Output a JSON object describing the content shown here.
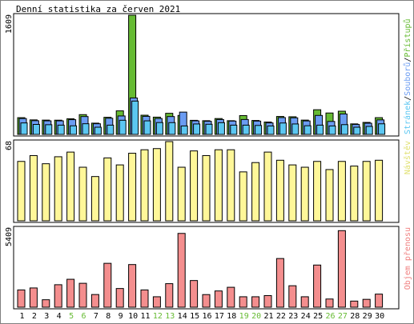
{
  "title": "Denní statistika za červen 2021",
  "colors": {
    "pristupu": "#66bb33",
    "souboru": "#6b9cf2",
    "stranek": "#5cc7f2",
    "navstev": "#fff799",
    "navstev_label": "#e0e070",
    "objem": "#f48e8e",
    "objem_label": "#f07f7f",
    "weekend": "#66bb33",
    "text": "#000000",
    "border": "#000000"
  },
  "chart_data": [
    {
      "type": "bar",
      "panel": "hits",
      "categories": [
        "1",
        "2",
        "3",
        "4",
        "5",
        "6",
        "7",
        "8",
        "9",
        "10",
        "11",
        "12",
        "13",
        "14",
        "15",
        "16",
        "17",
        "18",
        "19",
        "20",
        "21",
        "22",
        "23",
        "24",
        "25",
        "26",
        "27",
        "28",
        "29",
        "30"
      ],
      "weekend_days": [
        "5",
        "6",
        "12",
        "13",
        "19",
        "20",
        "26",
        "27"
      ],
      "ylabel_max": "1609",
      "ylim": [
        0,
        1609
      ],
      "legend_parts": [
        "Stránek",
        "/",
        "Souborů",
        "/",
        "Přístupů"
      ],
      "series": [
        {
          "name": "Přístupů",
          "color": "#66bb33",
          "values": [
            226,
            196,
            193,
            192,
            211,
            267,
            152,
            231,
            318,
            1609,
            259,
            233,
            285,
            256,
            190,
            185,
            214,
            185,
            254,
            188,
            167,
            242,
            238,
            193,
            333,
            289,
            313,
            142,
            162,
            226
          ]
        },
        {
          "name": "Souborů",
          "color": "#6b9cf2",
          "values": [
            214,
            185,
            183,
            183,
            199,
            241,
            144,
            218,
            249,
            492,
            244,
            215,
            241,
            301,
            183,
            177,
            201,
            180,
            201,
            180,
            155,
            227,
            224,
            182,
            256,
            175,
            276,
            134,
            151,
            196
          ]
        },
        {
          "name": "Stránek",
          "color": "#5cc7f2",
          "values": [
            155,
            135,
            131,
            125,
            116,
            144,
            97,
            125,
            191,
            450,
            183,
            160,
            159,
            114,
            141,
            137,
            158,
            125,
            125,
            121,
            114,
            154,
            141,
            117,
            125,
            114,
            132,
            97,
            108,
            143
          ]
        }
      ]
    },
    {
      "type": "bar",
      "panel": "visits",
      "categories": [
        "1",
        "2",
        "3",
        "4",
        "5",
        "6",
        "7",
        "8",
        "9",
        "10",
        "11",
        "12",
        "13",
        "14",
        "15",
        "16",
        "17",
        "18",
        "19",
        "20",
        "21",
        "22",
        "23",
        "24",
        "25",
        "26",
        "27",
        "28",
        "29",
        "30"
      ],
      "ylabel_max": "68",
      "ylim": [
        0,
        68
      ],
      "series_label": "Návštěv",
      "series": [
        {
          "name": "Návštěv",
          "color": "#fff799",
          "values": [
            51,
            56,
            49,
            55,
            59,
            46,
            38,
            54,
            48,
            58,
            61,
            62,
            68,
            46,
            60,
            56,
            61,
            61,
            42,
            50,
            59,
            52,
            48,
            46,
            51,
            44,
            51,
            47,
            51,
            52
          ]
        }
      ]
    },
    {
      "type": "bar",
      "panel": "traffic",
      "categories": [
        "1",
        "2",
        "3",
        "4",
        "5",
        "6",
        "7",
        "8",
        "9",
        "10",
        "11",
        "12",
        "13",
        "14",
        "15",
        "16",
        "17",
        "18",
        "19",
        "20",
        "21",
        "22",
        "23",
        "24",
        "25",
        "26",
        "27",
        "28",
        "29",
        "30"
      ],
      "ylabel_max": "5409",
      "ylim": [
        0,
        5409
      ],
      "series_label": "Objem přenosu",
      "series": [
        {
          "name": "Objem přenosu",
          "color": "#f48e8e",
          "values": [
            1180,
            1315,
            510,
            1536,
            1908,
            1633,
            866,
            2997,
            1277,
            2913,
            1180,
            714,
            1608,
            5040,
            1822,
            862,
            1110,
            1361,
            714,
            714,
            794,
            3325,
            1466,
            714,
            2879,
            560,
            5228,
            418,
            537,
            894
          ]
        }
      ]
    }
  ]
}
